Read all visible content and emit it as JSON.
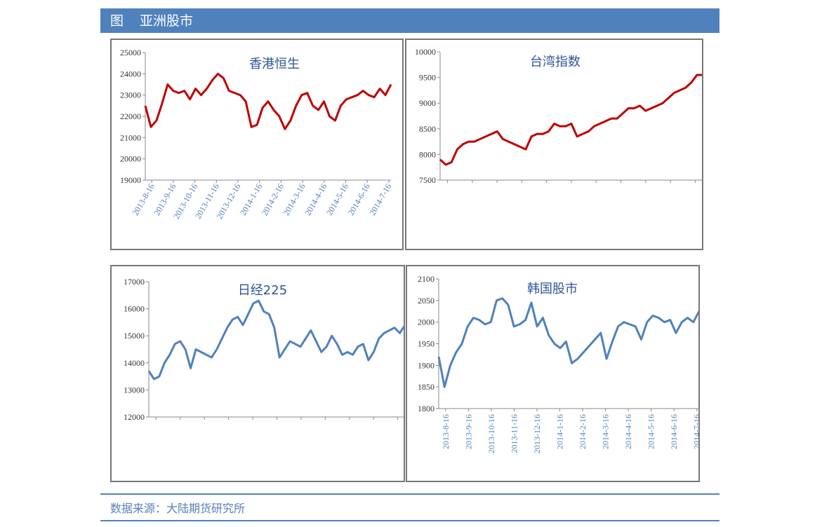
{
  "header": {
    "label": "图",
    "title": "亚洲股市"
  },
  "chart_data": [
    {
      "type": "line",
      "title": "香港恒生",
      "ylim": [
        19000,
        25000
      ],
      "yticks": [
        19000,
        20000,
        21000,
        22000,
        23000,
        24000,
        25000
      ],
      "xticks": [
        "2013-8-16",
        "2013-9-16",
        "2013-10-16",
        "2013-11-16",
        "2013-12-16",
        "2014-1-16",
        "2014-2-16",
        "2014-3-16",
        "2014-4-16",
        "2014-5-16",
        "2014-6-16",
        "2014-7-16"
      ],
      "series": [
        {
          "color": "#c00000",
          "values": [
            22500,
            21500,
            21800,
            22600,
            23500,
            23200,
            23100,
            23200,
            22800,
            23300,
            23000,
            23300,
            23700,
            24000,
            23800,
            23200,
            23100,
            23000,
            22700,
            21500,
            21600,
            22400,
            22700,
            22300,
            22000,
            21400,
            21800,
            22500,
            23000,
            23100,
            22500,
            22300,
            22700,
            22000,
            21800,
            22500,
            22800,
            22900,
            23000,
            23200,
            23000,
            22900,
            23300,
            23000,
            23500
          ]
        }
      ]
    },
    {
      "type": "line",
      "title": "台湾指数",
      "ylim": [
        7500,
        10000
      ],
      "yticks": [
        7500,
        8000,
        8500,
        9000,
        9500,
        10000
      ],
      "series": [
        {
          "color": "#c00000",
          "values": [
            7900,
            7800,
            7850,
            8100,
            8200,
            8250,
            8250,
            8300,
            8350,
            8400,
            8450,
            8300,
            8250,
            8200,
            8150,
            8100,
            8350,
            8400,
            8400,
            8450,
            8600,
            8550,
            8550,
            8600,
            8350,
            8400,
            8450,
            8550,
            8600,
            8650,
            8700,
            8700,
            8800,
            8900,
            8900,
            8950,
            8850,
            8900,
            8950,
            9000,
            9100,
            9200,
            9250,
            9300,
            9400,
            9550,
            9550
          ]
        }
      ]
    },
    {
      "type": "line",
      "title": "日经225",
      "ylim": [
        12000,
        17000
      ],
      "yticks": [
        12000,
        13000,
        14000,
        15000,
        16000,
        17000
      ],
      "series": [
        {
          "color": "#4f81bd",
          "values": [
            13700,
            13400,
            13500,
            14000,
            14300,
            14700,
            14800,
            14500,
            13800,
            14500,
            14400,
            14300,
            14200,
            14500,
            14900,
            15300,
            15600,
            15700,
            15400,
            15800,
            16200,
            16300,
            15900,
            15800,
            15300,
            14200,
            14500,
            14800,
            14700,
            14600,
            14900,
            15200,
            14800,
            14400,
            14600,
            15000,
            14700,
            14300,
            14400,
            14300,
            14600,
            14700,
            14100,
            14400,
            14900,
            15100,
            15200,
            15300,
            15100,
            15400
          ]
        }
      ]
    },
    {
      "type": "line",
      "title": "韩国股市",
      "ylim": [
        1800,
        2100
      ],
      "yticks": [
        1800,
        1850,
        1900,
        1950,
        2000,
        2050,
        2100
      ],
      "xticks": [
        "2013-8-16",
        "2013-9-16",
        "2013-10-16",
        "2013-11-16",
        "2013-12-16",
        "2014-1-16",
        "2014-2-16",
        "2014-3-16",
        "2014-4-16",
        "2014-5-16",
        "2014-6-16",
        "2014-7-16"
      ],
      "series": [
        {
          "color": "#4f81bd",
          "values": [
            1920,
            1850,
            1900,
            1930,
            1950,
            1990,
            2010,
            2005,
            1995,
            2000,
            2050,
            2055,
            2040,
            1990,
            1995,
            2005,
            2045,
            1990,
            2010,
            1970,
            1950,
            1940,
            1955,
            1905,
            1915,
            1930,
            1945,
            1960,
            1975,
            1915,
            1955,
            1990,
            2000,
            1995,
            1990,
            1960,
            2000,
            2015,
            2010,
            2000,
            2005,
            1975,
            2000,
            2010,
            2000,
            2025
          ]
        }
      ]
    }
  ],
  "footer": {
    "source": "数据来源：大陆期货研究所"
  }
}
